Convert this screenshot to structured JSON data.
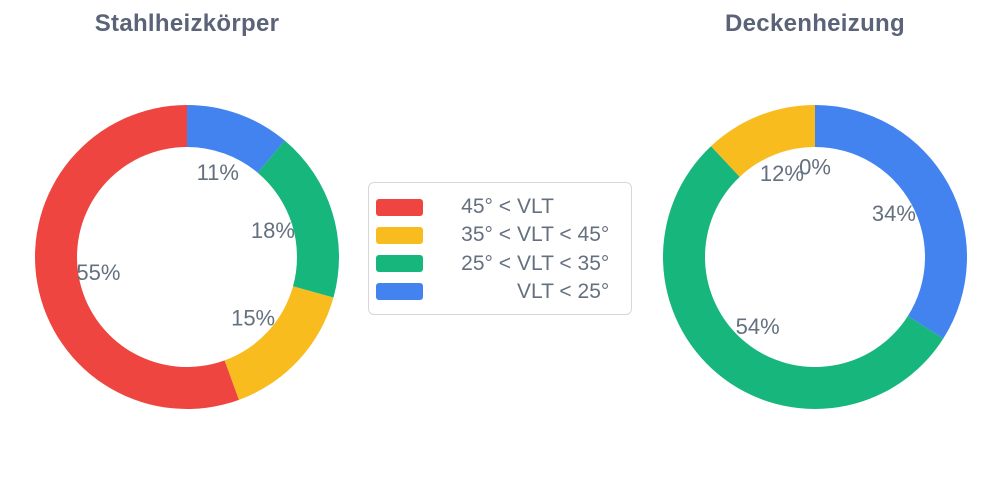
{
  "page": {
    "background": "#ffffff"
  },
  "colors": {
    "red": "#EF4541",
    "yellow": "#F9BC1F",
    "green": "#16B67C",
    "blue": "#4283F0",
    "title_text": "#5A6377",
    "label_text": "#65707F",
    "legend_border": "#D8D8D8"
  },
  "legend": {
    "items": [
      {
        "color_name": "red",
        "color": "#EF4541",
        "prefix": "45° <",
        "label": "VLT"
      },
      {
        "color_name": "yellow",
        "color": "#F9BC1F",
        "prefix": "35° <",
        "label": "VLT < 45°"
      },
      {
        "color_name": "green",
        "color": "#16B67C",
        "prefix": "25° <",
        "label": "VLT < 35°"
      },
      {
        "color_name": "blue",
        "color": "#4283F0",
        "prefix": "",
        "label": "VLT < 25°"
      }
    ]
  },
  "chart_data": [
    {
      "type": "pie",
      "title": "Stahlheizkörper",
      "hole_ratio": 0.72,
      "start": "top",
      "direction": "counterclockwise",
      "categories": [
        "45° < VLT",
        "35° < VLT < 45°",
        "25° < VLT < 35°",
        "VLT < 25°"
      ],
      "values": [
        55,
        15,
        18,
        11
      ],
      "value_labels": [
        "55%",
        "15%",
        "18%",
        "11%"
      ],
      "colors": [
        "#EF4541",
        "#F9BC1F",
        "#16B67C",
        "#4283F0"
      ],
      "color_names": [
        "red",
        "yellow",
        "green",
        "blue"
      ],
      "legend_shown": true
    },
    {
      "type": "pie",
      "title": "Deckenheizung",
      "hole_ratio": 0.72,
      "start": "top",
      "direction": "counterclockwise",
      "categories": [
        "45° < VLT",
        "35° < VLT < 45°",
        "25° < VLT < 35°",
        "VLT < 25°"
      ],
      "values": [
        0,
        12,
        54,
        34
      ],
      "value_labels": [
        "0%",
        "12%",
        "54%",
        "34%"
      ],
      "colors": [
        "#EF4541",
        "#F9BC1F",
        "#16B67C",
        "#4283F0"
      ],
      "color_names": [
        "red",
        "yellow",
        "green",
        "blue"
      ],
      "legend_shown": true
    }
  ]
}
